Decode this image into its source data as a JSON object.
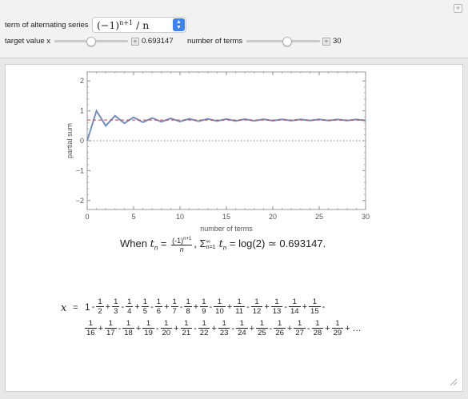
{
  "controls": {
    "series_label": "term of alternating series",
    "series_value_base": "(−1)",
    "series_value_exp": "n+1",
    "series_value_tail": " / n",
    "target_label": "target value x",
    "target_value": "0.693147",
    "terms_label": "number of terms",
    "terms_value": "30",
    "target_slider_fraction": 0.5,
    "terms_slider_fraction": 0.55
  },
  "chart_data": {
    "type": "line",
    "xlabel": "number of terms",
    "ylabel": "partial sum",
    "xlim": [
      0,
      30
    ],
    "ylim": [
      -2.3,
      2.3
    ],
    "x_ticks": [
      0,
      5,
      10,
      15,
      20,
      25,
      30
    ],
    "y_ticks": [
      -2,
      -1,
      0,
      1,
      2
    ],
    "target_line": 0.693147,
    "series": [
      {
        "color": "#6f8fbf",
        "x": [
          0,
          1,
          2,
          3,
          4,
          5,
          6,
          7,
          8,
          9,
          10,
          11,
          12,
          13,
          14,
          15,
          16,
          17,
          18,
          19,
          20,
          21,
          22,
          23,
          24,
          25,
          26,
          27,
          28,
          29,
          30
        ],
        "values": [
          0,
          1,
          0.5,
          0.8333,
          0.5833,
          0.7833,
          0.6167,
          0.7595,
          0.6345,
          0.7456,
          0.6456,
          0.7365,
          0.6532,
          0.7301,
          0.6587,
          0.7254,
          0.6629,
          0.7217,
          0.6661,
          0.7188,
          0.6688,
          0.7164,
          0.6709,
          0.7144,
          0.6728,
          0.7128,
          0.6743,
          0.7113,
          0.6756,
          0.7101,
          0.6768
        ]
      }
    ]
  },
  "caption": {
    "when": "When",
    "t": "t",
    "n_sub": "n",
    "eq": " = ",
    "frac_num": "(-1)",
    "frac_num_exp": "n+1",
    "frac_den": "n",
    "sum_part": ", Σ",
    "sum_sup": "∞",
    "sum_sub": "n=1",
    "sum_t": " t",
    "result": " = log(2) ≃ 0.693147."
  },
  "equation": {
    "x_label": "x",
    "equals": "=",
    "line1_lead": "1",
    "line1": [
      {
        "s": "-",
        "d": "2"
      },
      {
        "s": "+",
        "d": "3"
      },
      {
        "s": "-",
        "d": "4"
      },
      {
        "s": "+",
        "d": "5"
      },
      {
        "s": "-",
        "d": "6"
      },
      {
        "s": "+",
        "d": "7"
      },
      {
        "s": "-",
        "d": "8"
      },
      {
        "s": "+",
        "d": "9"
      },
      {
        "s": "-",
        "d": "10"
      },
      {
        "s": "+",
        "d": "11"
      },
      {
        "s": "-",
        "d": "12"
      },
      {
        "s": "+",
        "d": "13"
      },
      {
        "s": "-",
        "d": "14"
      },
      {
        "s": "+",
        "d": "15"
      }
    ],
    "line1_trail": "-",
    "line2": [
      {
        "s": "",
        "d": "16"
      },
      {
        "s": "+",
        "d": "17"
      },
      {
        "s": "-",
        "d": "18"
      },
      {
        "s": "+",
        "d": "19"
      },
      {
        "s": "-",
        "d": "20"
      },
      {
        "s": "+",
        "d": "21"
      },
      {
        "s": "-",
        "d": "22"
      },
      {
        "s": "+",
        "d": "23"
      },
      {
        "s": "-",
        "d": "24"
      },
      {
        "s": "+",
        "d": "25"
      },
      {
        "s": "-",
        "d": "26"
      },
      {
        "s": "+",
        "d": "27"
      },
      {
        "s": "-",
        "d": "28"
      },
      {
        "s": "+",
        "d": "29"
      }
    ],
    "line2_trail": "+ …",
    "numerator": "1"
  }
}
